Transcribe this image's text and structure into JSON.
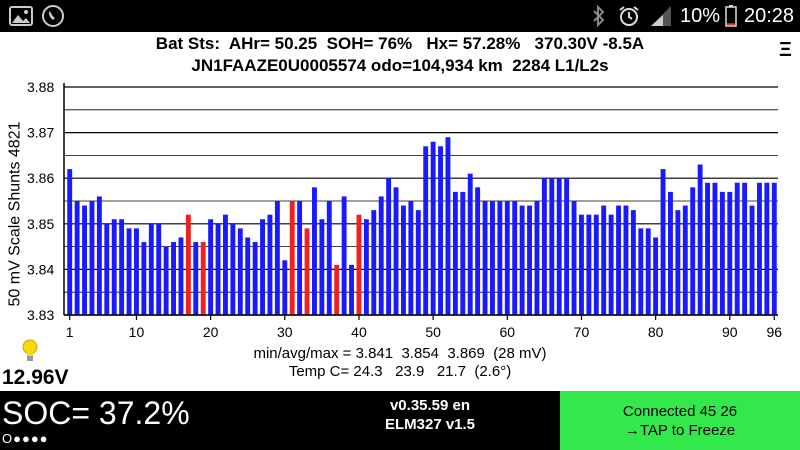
{
  "status_bar": {
    "battery_percent": "10%",
    "time": "20:28",
    "icons": [
      "gallery-icon",
      "phone-call-icon",
      "bluetooth-icon",
      "alarm-icon",
      "signal-icon",
      "battery-low-icon"
    ],
    "battery_level": 0.1,
    "battery_color": "#e53935"
  },
  "header": {
    "line1": "Bat Sts:  AHr= 50.25  SOH= 76%   Hx= 57.28%   370.30V -8.5A",
    "line2": "JN1FAAZE0U0005574 odo=104,934 km  2284 L1/L2s",
    "menu_symbol": "Ξ"
  },
  "chart_data": {
    "type": "bar",
    "ylabel": "50 mV Scale   Shunts 4821",
    "ylim": [
      3.83,
      3.88
    ],
    "yticks": [
      "3.83",
      "3.84",
      "3.85",
      "3.86",
      "3.87",
      "3.88"
    ],
    "xticks": [
      "1",
      "10",
      "20",
      "30",
      "40",
      "50",
      "60",
      "70",
      "80",
      "90",
      "96"
    ],
    "bar_color": "#1a1aff",
    "shunt_color": "#ee2222",
    "cells": [
      1,
      2,
      3,
      4,
      5,
      6,
      7,
      8,
      9,
      10,
      11,
      12,
      13,
      14,
      15,
      16,
      17,
      18,
      19,
      20,
      21,
      22,
      23,
      24,
      25,
      26,
      27,
      28,
      29,
      30,
      31,
      32,
      33,
      34,
      35,
      36,
      37,
      38,
      39,
      40,
      41,
      42,
      43,
      44,
      45,
      46,
      47,
      48,
      49,
      50,
      51,
      52,
      53,
      54,
      55,
      56,
      57,
      58,
      59,
      60,
      61,
      62,
      63,
      64,
      65,
      66,
      67,
      68,
      69,
      70,
      71,
      72,
      73,
      74,
      75,
      76,
      77,
      78,
      79,
      80,
      81,
      82,
      83,
      84,
      85,
      86,
      87,
      88,
      89,
      90,
      91,
      92,
      93,
      94,
      95,
      96
    ],
    "values": [
      3.862,
      3.855,
      3.854,
      3.855,
      3.856,
      3.85,
      3.851,
      3.851,
      3.849,
      3.849,
      3.846,
      3.85,
      3.85,
      3.845,
      3.846,
      3.847,
      3.852,
      3.846,
      3.846,
      3.851,
      3.85,
      3.852,
      3.85,
      3.849,
      3.847,
      3.846,
      3.851,
      3.852,
      3.855,
      3.842,
      3.855,
      3.855,
      3.849,
      3.858,
      3.851,
      3.855,
      3.841,
      3.856,
      3.841,
      3.852,
      3.851,
      3.853,
      3.856,
      3.86,
      3.858,
      3.854,
      3.855,
      3.853,
      3.867,
      3.868,
      3.867,
      3.869,
      3.857,
      3.857,
      3.861,
      3.858,
      3.855,
      3.855,
      3.855,
      3.855,
      3.855,
      3.854,
      3.854,
      3.855,
      3.86,
      3.86,
      3.86,
      3.86,
      3.855,
      3.852,
      3.852,
      3.852,
      3.854,
      3.852,
      3.854,
      3.854,
      3.853,
      3.849,
      3.849,
      3.847,
      3.862,
      3.857,
      3.853,
      3.854,
      3.858,
      3.863,
      3.859,
      3.859,
      3.857,
      3.857,
      3.859,
      3.859,
      3.854,
      3.859,
      3.859,
      3.859
    ],
    "shunted": [
      17,
      19,
      31,
      33,
      37,
      40
    ]
  },
  "stats": {
    "line1": "min/avg/max = 3.841  3.854  3.869  (28 mV)",
    "line2": "Temp C= 24.3   23.9   21.7  (2.6°)"
  },
  "aux_voltage": "12.96V",
  "bottom": {
    "soc": "SOC= 37.2%",
    "dots": "O●●●●",
    "version_line1": "v0.35.59 en",
    "version_line2": "ELM327 v1.5",
    "connect_line1": "Connected 45 26",
    "connect_line2": "→TAP to Freeze",
    "connect_color": "#33e84a"
  }
}
